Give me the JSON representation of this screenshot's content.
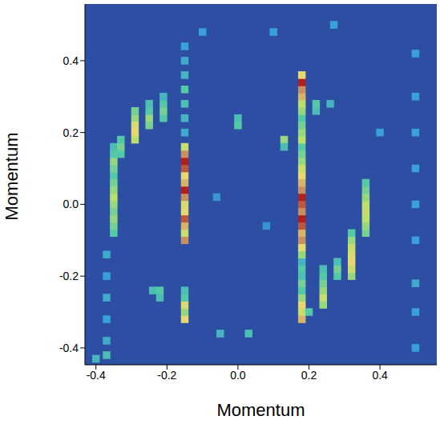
{
  "chart_data": {
    "type": "heatmap",
    "x_label": "Momentum",
    "y_label": "Momentum",
    "xlim": [
      -0.431,
      0.56
    ],
    "ylim": [
      -0.447,
      0.558
    ],
    "xticks": [
      -0.4,
      -0.2,
      {
        "value": 0,
        "label": "0.0"
      },
      0.2,
      0.4
    ],
    "yticks": [
      -0.4,
      -0.2,
      {
        "value": 0,
        "label": "0.0"
      },
      0.2,
      0.4
    ],
    "cell_width": 0.02,
    "cell_height": 0.02,
    "zlim": [
      0,
      1
    ],
    "cells": [
      [
        -0.15,
        -0.1,
        0.9
      ],
      [
        -0.15,
        -0.08,
        0.7
      ],
      [
        -0.15,
        -0.06,
        0.85
      ],
      [
        -0.15,
        -0.04,
        0.95
      ],
      [
        -0.15,
        -0.02,
        0.8
      ],
      [
        -0.15,
        0.0,
        0.75
      ],
      [
        -0.15,
        0.02,
        0.9
      ],
      [
        -0.15,
        0.04,
        1.0
      ],
      [
        -0.15,
        0.06,
        0.85
      ],
      [
        -0.15,
        0.08,
        0.8
      ],
      [
        -0.15,
        0.1,
        0.95
      ],
      [
        -0.15,
        0.12,
        1.0
      ],
      [
        -0.15,
        0.14,
        0.9
      ],
      [
        -0.15,
        0.16,
        0.7
      ],
      [
        -0.15,
        -0.32,
        0.8
      ],
      [
        -0.15,
        -0.3,
        0.6
      ],
      [
        -0.15,
        -0.28,
        0.75
      ],
      [
        -0.15,
        -0.26,
        0.5
      ],
      [
        -0.15,
        -0.24,
        0.45
      ],
      [
        -0.15,
        0.2,
        0.35
      ],
      [
        -0.15,
        0.24,
        0.4
      ],
      [
        -0.15,
        0.28,
        0.45
      ],
      [
        -0.15,
        0.32,
        0.5
      ],
      [
        -0.15,
        0.36,
        0.4
      ],
      [
        -0.15,
        0.4,
        0.35
      ],
      [
        -0.15,
        0.44,
        0.3
      ],
      [
        0.18,
        -0.32,
        0.85
      ],
      [
        0.18,
        -0.3,
        0.7
      ],
      [
        0.18,
        -0.28,
        0.8
      ],
      [
        0.18,
        -0.26,
        0.6
      ],
      [
        0.18,
        -0.24,
        0.5
      ],
      [
        0.18,
        -0.22,
        0.55
      ],
      [
        0.18,
        -0.2,
        0.45
      ],
      [
        0.18,
        -0.18,
        0.5
      ],
      [
        0.18,
        -0.16,
        0.4
      ],
      [
        0.18,
        -0.14,
        0.6
      ],
      [
        0.18,
        -0.12,
        0.8
      ],
      [
        0.18,
        -0.1,
        0.9
      ],
      [
        0.18,
        -0.08,
        0.85
      ],
      [
        0.18,
        -0.06,
        0.95
      ],
      [
        0.18,
        -0.04,
        1.0
      ],
      [
        0.18,
        -0.02,
        0.9
      ],
      [
        0.18,
        0.0,
        0.95
      ],
      [
        0.18,
        0.02,
        1.0
      ],
      [
        0.18,
        0.04,
        0.9
      ],
      [
        0.18,
        0.06,
        0.85
      ],
      [
        0.18,
        0.08,
        0.8
      ],
      [
        0.18,
        0.1,
        0.7
      ],
      [
        0.18,
        0.12,
        0.6
      ],
      [
        0.18,
        0.14,
        0.55
      ],
      [
        0.18,
        0.16,
        0.5
      ],
      [
        0.18,
        0.18,
        0.65
      ],
      [
        0.18,
        0.2,
        0.6
      ],
      [
        0.18,
        0.22,
        0.55
      ],
      [
        0.18,
        0.24,
        0.5
      ],
      [
        0.18,
        0.26,
        0.6
      ],
      [
        0.18,
        0.28,
        0.65
      ],
      [
        0.18,
        0.3,
        0.85
      ],
      [
        0.18,
        0.32,
        0.9
      ],
      [
        0.18,
        0.34,
        1.0
      ],
      [
        0.18,
        0.36,
        0.8
      ],
      [
        -0.35,
        -0.08,
        0.5
      ],
      [
        -0.35,
        -0.06,
        0.55
      ],
      [
        -0.35,
        -0.04,
        0.6
      ],
      [
        -0.35,
        -0.02,
        0.55
      ],
      [
        -0.35,
        0.0,
        0.6
      ],
      [
        -0.35,
        0.02,
        0.65
      ],
      [
        -0.35,
        0.04,
        0.6
      ],
      [
        -0.35,
        0.06,
        0.55
      ],
      [
        -0.35,
        0.08,
        0.5
      ],
      [
        -0.35,
        0.1,
        0.55
      ],
      [
        -0.35,
        0.12,
        0.6
      ],
      [
        -0.35,
        0.14,
        0.5
      ],
      [
        -0.35,
        0.16,
        0.45
      ],
      [
        -0.33,
        0.14,
        0.5
      ],
      [
        -0.33,
        0.16,
        0.55
      ],
      [
        -0.33,
        0.18,
        0.5
      ],
      [
        -0.29,
        0.18,
        0.65
      ],
      [
        -0.29,
        0.2,
        0.8
      ],
      [
        -0.29,
        0.22,
        0.75
      ],
      [
        -0.29,
        0.24,
        0.6
      ],
      [
        -0.29,
        0.26,
        0.55
      ],
      [
        -0.25,
        0.22,
        0.55
      ],
      [
        -0.25,
        0.24,
        0.6
      ],
      [
        -0.25,
        0.26,
        0.5
      ],
      [
        -0.25,
        0.28,
        0.45
      ],
      [
        -0.21,
        0.24,
        0.5
      ],
      [
        -0.21,
        0.26,
        0.55
      ],
      [
        -0.21,
        0.28,
        0.5
      ],
      [
        -0.21,
        0.3,
        0.4
      ],
      [
        -0.37,
        -0.14,
        0.35
      ],
      [
        -0.37,
        -0.2,
        0.3
      ],
      [
        -0.37,
        -0.26,
        0.35
      ],
      [
        -0.37,
        -0.32,
        0.3
      ],
      [
        -0.37,
        -0.38,
        0.35
      ],
      [
        -0.37,
        -0.42,
        0.45
      ],
      [
        0.36,
        -0.08,
        0.55
      ],
      [
        0.36,
        -0.06,
        0.6
      ],
      [
        0.36,
        -0.04,
        0.65
      ],
      [
        0.36,
        -0.02,
        0.7
      ],
      [
        0.36,
        0.0,
        0.65
      ],
      [
        0.36,
        0.02,
        0.6
      ],
      [
        0.36,
        0.04,
        0.55
      ],
      [
        0.36,
        0.06,
        0.5
      ],
      [
        0.32,
        -0.2,
        0.6
      ],
      [
        0.32,
        -0.18,
        0.7
      ],
      [
        0.32,
        -0.16,
        0.8
      ],
      [
        0.32,
        -0.14,
        0.75
      ],
      [
        0.32,
        -0.12,
        0.7
      ],
      [
        0.32,
        -0.1,
        0.6
      ],
      [
        0.32,
        -0.08,
        0.5
      ],
      [
        0.28,
        -0.2,
        0.5
      ],
      [
        0.28,
        -0.18,
        0.55
      ],
      [
        0.28,
        -0.16,
        0.45
      ],
      [
        0.24,
        -0.28,
        0.6
      ],
      [
        0.24,
        -0.26,
        0.7
      ],
      [
        0.24,
        -0.24,
        0.6
      ],
      [
        0.24,
        -0.22,
        0.55
      ],
      [
        0.24,
        -0.2,
        0.5
      ],
      [
        0.24,
        -0.18,
        0.45
      ],
      [
        0.22,
        0.28,
        0.5
      ],
      [
        0.22,
        0.26,
        0.45
      ],
      [
        0.26,
        0.28,
        0.4
      ],
      [
        0.2,
        -0.3,
        0.5
      ],
      [
        0.13,
        0.18,
        0.6
      ],
      [
        0.13,
        0.16,
        0.45
      ],
      [
        0.0,
        0.22,
        0.5
      ],
      [
        0.0,
        0.24,
        0.45
      ],
      [
        -0.22,
        -0.24,
        0.5
      ],
      [
        -0.22,
        -0.26,
        0.45
      ],
      [
        -0.24,
        -0.24,
        0.45
      ],
      [
        0.03,
        -0.36,
        0.45
      ],
      [
        -0.05,
        -0.36,
        0.4
      ],
      [
        0.5,
        -0.4,
        0.3
      ],
      [
        0.5,
        -0.3,
        0.3
      ],
      [
        0.5,
        -0.22,
        0.35
      ],
      [
        0.5,
        -0.1,
        0.3
      ],
      [
        0.5,
        0.0,
        0.3
      ],
      [
        0.5,
        0.1,
        0.3
      ],
      [
        0.5,
        0.2,
        0.3
      ],
      [
        0.5,
        0.3,
        0.3
      ],
      [
        0.5,
        0.42,
        0.3
      ],
      [
        -0.1,
        0.48,
        0.3
      ],
      [
        0.1,
        0.48,
        0.3
      ],
      [
        0.27,
        0.5,
        0.3
      ],
      [
        -0.4,
        -0.43,
        0.4
      ],
      [
        0.4,
        0.2,
        0.3
      ],
      [
        -0.06,
        0.02,
        0.25
      ],
      [
        0.08,
        -0.06,
        0.25
      ]
    ]
  }
}
